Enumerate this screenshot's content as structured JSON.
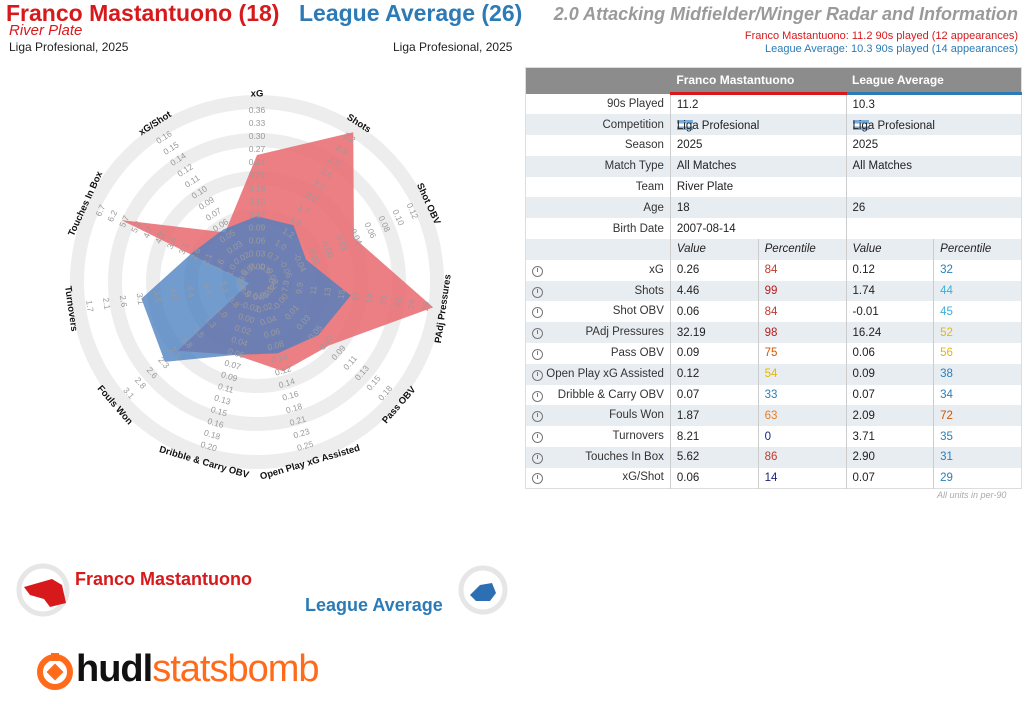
{
  "header": {
    "player_name": "Franco Mastantuono (18)",
    "player_team": "River Plate",
    "player_competition": "Liga Profesional, 2025",
    "comparison_name": "League Average (26)",
    "comparison_competition": "Liga Profesional, 2025",
    "radar_title": "2.0 Attacking Midfielder/Winger Radar and Information",
    "player_played": "Franco Mastantuono: 11.2 90s played (12 appearances)",
    "comparison_played": "League Average: 10.3 90s played (14 appearances)"
  },
  "colors": {
    "player": "#d7191c",
    "player_fill": "#e8686e",
    "comparison": "#2c7bb6",
    "comparison_fill": "#4a7fc0",
    "ring": "#ededed",
    "label": "#9a9a9a"
  },
  "chart_data": {
    "type": "radar",
    "metrics": [
      {
        "label": "xG",
        "ticks": [
          "0.00",
          "0.03",
          "0.06",
          "0.09",
          "0.12",
          "0.15",
          "0.18",
          "0.21",
          "0.24",
          "0.27",
          "0.30",
          "0.33",
          "0.36"
        ],
        "player": 0.26,
        "comparison": 0.12
      },
      {
        "label": "Shots",
        "ticks": [
          "0.5",
          "0.7",
          "1.0",
          "1.2",
          "1.5",
          "1.7",
          "2.0",
          "2.2",
          "2.5",
          "2.7",
          "2.9",
          "3.2"
        ],
        "player": 4.46,
        "comparison": 1.74
      },
      {
        "label": "Shot OBV",
        "ticks": [
          "-0.08",
          "-0.06",
          "-0.04",
          "-0.02",
          "0.00",
          "0.02",
          "0.04",
          "0.06",
          "0.08",
          "0.10",
          "0.12"
        ],
        "player": 0.06,
        "comparison": -0.01
      },
      {
        "label": "PAdj Pressures",
        "ticks": [
          "6.0",
          "7.9",
          "9.9",
          "11",
          "13",
          "15",
          "17",
          "19",
          "20",
          "22",
          "24",
          "26"
        ],
        "player": 32.19,
        "comparison": 16.24
      },
      {
        "label": "Pass OBV",
        "ticks": [
          "-0.02",
          "-0.00",
          "0.01",
          "0.03",
          "0.05",
          "0.07",
          "0.09",
          "0.11",
          "0.13",
          "0.15",
          "0.18"
        ],
        "player": 0.09,
        "comparison": 0.06
      },
      {
        "label": "Open Play xG Assisted",
        "ticks": [
          "0.00",
          "0.02",
          "0.04",
          "0.06",
          "0.08",
          "0.10",
          "0.12",
          "0.14",
          "0.16",
          "0.18",
          "0.21",
          "0.23",
          "0.25"
        ],
        "player": 0.12,
        "comparison": 0.09
      },
      {
        "label": "Dribble & Carry OBV",
        "ticks": [
          "-0.04",
          "-0.02",
          "0.00",
          "0.02",
          "0.04",
          "0.06",
          "0.07",
          "0.09",
          "0.11",
          "0.13",
          "0.15",
          "0.16",
          "0.18",
          "0.20"
        ],
        "player": 0.07,
        "comparison": 0.07
      },
      {
        "label": "Fouls Won",
        "ticks": [
          "0.5",
          "0.8",
          "1.0",
          "1.3",
          "1.5",
          "1.8",
          "2.1",
          "2.3",
          "2.6",
          "2.8",
          "3.1"
        ],
        "player": 1.87,
        "comparison": 2.09
      },
      {
        "label": "Turnovers",
        "ticks": [
          "5.8",
          "5.3",
          "4.9",
          "4.4",
          "4.0",
          "3.5",
          "3.1",
          "2.6",
          "2.1",
          "1.7"
        ],
        "player": 8.21,
        "comparison": 3.71
      },
      {
        "label": "Touches In Box",
        "ticks": [
          "0.5",
          "1.0",
          "1.6",
          "2.1",
          "2.6",
          "3.1",
          "3.6",
          "4.2",
          "4.7",
          "5.2",
          "5.7",
          "6.2",
          "6.7"
        ],
        "player": 5.62,
        "comparison": 2.9
      },
      {
        "label": "xG/Shot",
        "ticks": [
          "0.01",
          "0.02",
          "0.03",
          "0.05",
          "0.06",
          "0.07",
          "0.09",
          "0.10",
          "0.11",
          "0.12",
          "0.14",
          "0.15",
          "0.16"
        ],
        "player": 0.06,
        "comparison": 0.07
      }
    ],
    "series": [
      {
        "name": "Franco Mastantuono"
      },
      {
        "name": "League Average"
      }
    ],
    "player_radius": [
      0.7,
      1.0,
      0.58,
      1.0,
      0.52,
      0.5,
      0.4,
      0.57,
      0.0,
      0.83,
      0.3
    ],
    "comparison_radius": [
      0.34,
      0.35,
      0.27,
      0.51,
      0.43,
      0.39,
      0.4,
      0.67,
      0.64,
      0.37,
      0.32
    ]
  },
  "table": {
    "headers": [
      "",
      "Franco Mastantuono",
      "League Average"
    ],
    "info_rows": [
      {
        "label": "90s Played",
        "p1": "11.2",
        "p2": "10.3"
      },
      {
        "label": "Competition",
        "p1": "Liga Profesional",
        "p2": "Liga Profesional"
      },
      {
        "label": "Season",
        "p1": "2025",
        "p2": "2025"
      },
      {
        "label": "Match Type",
        "p1": "All Matches",
        "p2": "All Matches"
      },
      {
        "label": "Team",
        "p1": "River Plate",
        "p2": ""
      },
      {
        "label": "Age",
        "p1": "18",
        "p2": "26"
      },
      {
        "label": "Birth Date",
        "p1": "2007-08-14",
        "p2": ""
      }
    ],
    "subheaders": [
      "Value",
      "Percentile",
      "Value",
      "Percentile"
    ],
    "metric_rows": [
      {
        "label": "xG",
        "v1": "0.26",
        "p1": "84",
        "p1c": "#c0392b",
        "v2": "0.12",
        "p2": "32",
        "p2c": "#2980b9"
      },
      {
        "label": "Shots",
        "v1": "4.46",
        "p1": "99",
        "p1c": "#b71c1c",
        "v2": "1.74",
        "p2": "44",
        "p2c": "#3bafda"
      },
      {
        "label": "Shot OBV",
        "v1": "0.06",
        "p1": "84",
        "p1c": "#c0392b",
        "v2": "-0.01",
        "p2": "45",
        "p2c": "#3bafda"
      },
      {
        "label": "PAdj Pressures",
        "v1": "32.19",
        "p1": "98",
        "p1c": "#b71c1c",
        "v2": "16.24",
        "p2": "52",
        "p2c": "#e6b800"
      },
      {
        "label": "Pass OBV",
        "v1": "0.09",
        "p1": "75",
        "p1c": "#d35400",
        "v2": "0.06",
        "p2": "56",
        "p2c": "#e6b800"
      },
      {
        "label": "Open Play xG Assisted",
        "v1": "0.12",
        "p1": "54",
        "p1c": "#e6b800",
        "v2": "0.09",
        "p2": "38",
        "p2c": "#2980b9"
      },
      {
        "label": "Dribble & Carry OBV",
        "v1": "0.07",
        "p1": "33",
        "p1c": "#2980b9",
        "v2": "0.07",
        "p2": "34",
        "p2c": "#2980b9"
      },
      {
        "label": "Fouls Won",
        "v1": "1.87",
        "p1": "63",
        "p1c": "#e67e22",
        "v2": "2.09",
        "p2": "72",
        "p2c": "#d35400"
      },
      {
        "label": "Turnovers",
        "v1": "8.21",
        "p1": "0",
        "p1c": "#1a237e",
        "v2": "3.71",
        "p2": "35",
        "p2c": "#2980b9"
      },
      {
        "label": "Touches In Box",
        "v1": "5.62",
        "p1": "86",
        "p1c": "#c0392b",
        "v2": "2.90",
        "p2": "31",
        "p2c": "#2980b9"
      },
      {
        "label": "xG/Shot",
        "v1": "0.06",
        "p1": "14",
        "p1c": "#1a237e",
        "v2": "0.07",
        "p2": "29",
        "p2c": "#2980b9"
      }
    ],
    "footnote": "All units in per-90"
  },
  "legend": {
    "player_label": "Franco Mastantuono",
    "comparison_label": "League Average"
  },
  "logo": {
    "part1": "hudl",
    "part2": "statsbomb"
  }
}
